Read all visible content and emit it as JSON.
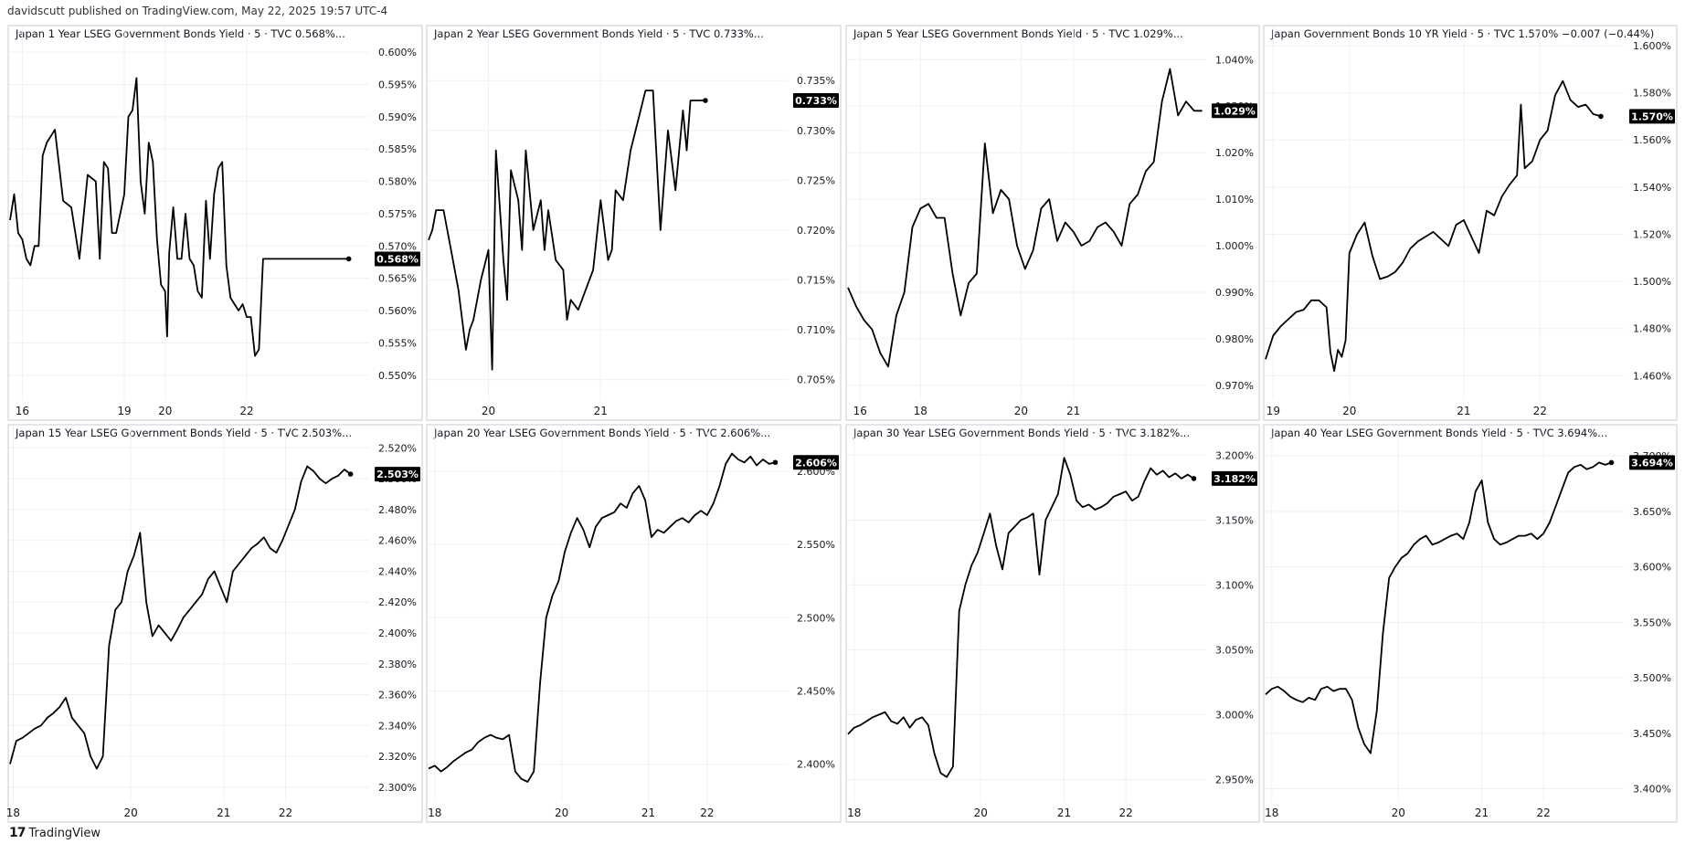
{
  "header": {
    "published": "davidscutt published on TradingView.com, May 22, 2025 19:57 UTC-4"
  },
  "footer": {
    "brand": "TradingView",
    "logo_glyph": "17"
  },
  "colors": {
    "line": "#000000",
    "grid": "#eef0f3",
    "border": "#c7cbd3",
    "text": "#131722",
    "badge_bg": "#000000",
    "badge_text": "#ffffff"
  },
  "chart_data": [
    {
      "type": "line",
      "title": "Japan 1 Year LSEG Government Bonds Yield · 5 · TVC  0.568%...",
      "ylim": [
        0.547,
        0.601
      ],
      "ticks": [
        "0.550%",
        "0.555%",
        "0.560%",
        "0.565%",
        "0.570%",
        "0.575%",
        "0.580%",
        "0.585%",
        "0.590%",
        "0.595%",
        "0.600%"
      ],
      "tick_values": [
        0.55,
        0.555,
        0.56,
        0.565,
        0.57,
        0.575,
        0.58,
        0.585,
        0.59,
        0.595,
        0.6
      ],
      "xlim": [
        15.7,
        24.5
      ],
      "xticks": [
        "16",
        "19",
        "20",
        "22"
      ],
      "xtick_values": [
        16,
        18.5,
        19.5,
        21.5
      ],
      "last_label": "0.568%",
      "last_value": 0.568,
      "end_dot": true,
      "x": [
        15.7,
        15.8,
        15.9,
        16.0,
        16.1,
        16.2,
        16.3,
        16.4,
        16.5,
        16.6,
        16.7,
        16.8,
        17.0,
        17.2,
        17.4,
        17.6,
        17.8,
        17.9,
        18.0,
        18.1,
        18.2,
        18.3,
        18.4,
        18.5,
        18.6,
        18.7,
        18.8,
        18.9,
        19.0,
        19.1,
        19.2,
        19.3,
        19.4,
        19.5,
        19.55,
        19.6,
        19.7,
        19.8,
        19.9,
        20.0,
        20.1,
        20.2,
        20.3,
        20.4,
        20.5,
        20.6,
        20.7,
        20.8,
        20.9,
        21.0,
        21.1,
        21.2,
        21.3,
        21.4,
        21.5,
        21.6,
        21.7,
        21.8,
        21.9,
        22.0,
        22.1,
        22.2,
        22.3,
        22.4,
        22.5,
        22.6,
        22.7,
        22.8,
        22.9,
        23.0,
        23.1,
        23.2,
        23.3,
        23.4,
        23.5,
        23.6,
        23.7,
        23.8,
        23.9,
        24.0
      ],
      "values": [
        0.574,
        0.578,
        0.572,
        0.571,
        0.568,
        0.567,
        0.57,
        0.57,
        0.584,
        0.586,
        0.587,
        0.588,
        0.577,
        0.576,
        0.568,
        0.581,
        0.58,
        0.568,
        0.583,
        0.582,
        0.572,
        0.572,
        0.575,
        0.578,
        0.59,
        0.591,
        0.596,
        0.58,
        0.575,
        0.586,
        0.583,
        0.571,
        0.564,
        0.563,
        0.556,
        0.569,
        0.576,
        0.568,
        0.568,
        0.575,
        0.568,
        0.567,
        0.563,
        0.562,
        0.577,
        0.568,
        0.578,
        0.582,
        0.583,
        0.567,
        0.562,
        0.561,
        0.56,
        0.561,
        0.559,
        0.559,
        0.553,
        0.554,
        0.568,
        0.568,
        0.568,
        0.568,
        0.568,
        0.568,
        0.568,
        0.568,
        0.568,
        0.568,
        0.568,
        0.568,
        0.568,
        0.568,
        0.568,
        0.568,
        0.568,
        0.568,
        0.568,
        0.568,
        0.568,
        0.568
      ]
    },
    {
      "type": "line",
      "title": "Japan 2 Year LSEG Government Bonds Yield · 5 · TVC  0.733%...",
      "ylim": [
        0.7035,
        0.7385
      ],
      "ticks": [
        "0.705%",
        "0.710%",
        "0.715%",
        "0.720%",
        "0.725%",
        "0.730%",
        "0.735%"
      ],
      "tick_values": [
        0.705,
        0.71,
        0.715,
        0.72,
        0.725,
        0.73,
        0.735
      ],
      "xlim": [
        19.0,
        23.8
      ],
      "xticks": [
        "20",
        "21"
      ],
      "xtick_values": [
        19.8,
        21.3
      ],
      "last_label": "0.733%",
      "last_value": 0.733,
      "end_dot": true,
      "x": [
        19.0,
        19.05,
        19.1,
        19.2,
        19.3,
        19.4,
        19.5,
        19.55,
        19.6,
        19.7,
        19.8,
        19.85,
        19.9,
        20.0,
        20.05,
        20.1,
        20.2,
        20.25,
        20.3,
        20.4,
        20.5,
        20.55,
        20.6,
        20.7,
        20.8,
        20.85,
        20.9,
        21.0,
        21.1,
        21.2,
        21.3,
        21.4,
        21.45,
        21.5,
        21.6,
        21.7,
        21.8,
        21.9,
        22.0,
        22.1,
        22.2,
        22.25,
        22.3,
        22.4,
        22.45,
        22.5,
        22.6,
        22.65,
        22.7
      ],
      "values": [
        0.719,
        0.72,
        0.722,
        0.722,
        0.718,
        0.714,
        0.708,
        0.71,
        0.711,
        0.715,
        0.718,
        0.706,
        0.728,
        0.717,
        0.713,
        0.726,
        0.723,
        0.718,
        0.728,
        0.72,
        0.723,
        0.718,
        0.722,
        0.717,
        0.716,
        0.711,
        0.713,
        0.712,
        0.714,
        0.716,
        0.723,
        0.717,
        0.718,
        0.724,
        0.723,
        0.728,
        0.731,
        0.734,
        0.734,
        0.72,
        0.73,
        0.727,
        0.724,
        0.732,
        0.728,
        0.733,
        0.733,
        0.733,
        0.733
      ]
    },
    {
      "type": "line",
      "title": "Japan 5 Year LSEG Government Bonds Yield · 5 · TVC  1.029%...",
      "ylim": [
        0.968,
        1.043
      ],
      "ticks": [
        "0.970%",
        "0.980%",
        "0.990%",
        "1.000%",
        "1.010%",
        "1.020%",
        "1.030%",
        "1.040%"
      ],
      "tick_values": [
        0.97,
        0.98,
        0.99,
        1.0,
        1.01,
        1.02,
        1.03,
        1.04
      ],
      "xlim": [
        15.7,
        24.6
      ],
      "xticks": [
        "16",
        "18",
        "20",
        "21"
      ],
      "xtick_values": [
        16,
        17.5,
        20,
        21.3
      ],
      "last_label": "1.029%",
      "last_value": 1.029,
      "end_dot": false,
      "x": [
        15.7,
        15.9,
        16.1,
        16.3,
        16.5,
        16.7,
        16.9,
        17.1,
        17.3,
        17.5,
        17.7,
        17.9,
        18.1,
        18.3,
        18.5,
        18.7,
        18.9,
        19.1,
        19.3,
        19.5,
        19.7,
        19.9,
        20.1,
        20.3,
        20.5,
        20.7,
        20.9,
        21.1,
        21.3,
        21.5,
        21.7,
        21.9,
        22.1,
        22.3,
        22.5,
        22.7,
        22.9,
        23.1,
        23.3,
        23.5,
        23.7,
        23.9,
        24.1,
        24.3,
        24.5
      ],
      "values": [
        0.991,
        0.987,
        0.984,
        0.982,
        0.977,
        0.974,
        0.985,
        0.99,
        1.004,
        1.008,
        1.009,
        1.006,
        1.006,
        0.994,
        0.985,
        0.992,
        0.994,
        1.022,
        1.007,
        1.012,
        1.01,
        1.0,
        0.995,
        0.999,
        1.008,
        1.01,
        1.001,
        1.005,
        1.003,
        1.0,
        1.001,
        1.004,
        1.005,
        1.003,
        1.0,
        1.009,
        1.011,
        1.016,
        1.018,
        1.031,
        1.038,
        1.028,
        1.031,
        1.029,
        1.029
      ]
    },
    {
      "type": "line",
      "title": "Japan Government Bonds 10 YR Yield · 5 · TVC  1.570%  −0.007 (−0.44%)",
      "ylim": [
        1.452,
        1.6
      ],
      "ticks": [
        "1.460%",
        "1.480%",
        "1.500%",
        "1.520%",
        "1.540%",
        "1.560%",
        "1.580%",
        "1.600%"
      ],
      "tick_values": [
        1.46,
        1.48,
        1.5,
        1.52,
        1.54,
        1.56,
        1.58,
        1.6
      ],
      "xlim": [
        18.7,
        23.4
      ],
      "xticks": [
        "19",
        "20",
        "21",
        "22"
      ],
      "xtick_values": [
        18.8,
        19.8,
        21.3,
        22.3
      ],
      "last_label": "1.570%",
      "last_value": 1.57,
      "end_dot": true,
      "x": [
        18.7,
        18.8,
        18.9,
        19.0,
        19.1,
        19.2,
        19.3,
        19.4,
        19.5,
        19.55,
        19.6,
        19.65,
        19.7,
        19.75,
        19.8,
        19.9,
        20.0,
        20.1,
        20.2,
        20.3,
        20.4,
        20.5,
        20.6,
        20.7,
        20.8,
        20.9,
        21.0,
        21.1,
        21.2,
        21.3,
        21.4,
        21.5,
        21.6,
        21.7,
        21.8,
        21.9,
        22.0,
        22.05,
        22.1,
        22.2,
        22.3,
        22.4,
        22.5,
        22.6,
        22.7,
        22.8,
        22.9,
        23.0,
        23.1
      ],
      "values": [
        1.467,
        1.477,
        1.481,
        1.484,
        1.487,
        1.488,
        1.492,
        1.492,
        1.489,
        1.47,
        1.462,
        1.471,
        1.468,
        1.475,
        1.512,
        1.52,
        1.525,
        1.511,
        1.501,
        1.502,
        1.504,
        1.508,
        1.514,
        1.517,
        1.519,
        1.521,
        1.518,
        1.515,
        1.524,
        1.526,
        1.519,
        1.512,
        1.53,
        1.528,
        1.536,
        1.541,
        1.545,
        1.575,
        1.548,
        1.551,
        1.56,
        1.564,
        1.579,
        1.585,
        1.577,
        1.574,
        1.575,
        1.571,
        1.57
      ]
    },
    {
      "type": "line",
      "title": "Japan 15 Year LSEG Government Bonds Yield · 5 · TVC  2.503%...",
      "ylim": [
        2.294,
        2.522
      ],
      "ticks": [
        "2.300%",
        "2.320%",
        "2.340%",
        "2.360%",
        "2.380%",
        "2.400%",
        "2.420%",
        "2.440%",
        "2.460%",
        "2.480%",
        "2.500%",
        "2.520%"
      ],
      "tick_values": [
        2.3,
        2.32,
        2.34,
        2.36,
        2.38,
        2.4,
        2.42,
        2.44,
        2.46,
        2.48,
        2.5,
        2.52
      ],
      "xlim": [
        18.0,
        23.8
      ],
      "xticks": [
        "18",
        "20",
        "21",
        "22"
      ],
      "xtick_values": [
        18.05,
        19.95,
        21.45,
        22.45
      ],
      "last_label": "2.503%",
      "last_value": 2.503,
      "end_dot": true,
      "x": [
        18.0,
        18.1,
        18.2,
        18.3,
        18.4,
        18.5,
        18.6,
        18.7,
        18.8,
        18.9,
        19.0,
        19.1,
        19.2,
        19.3,
        19.4,
        19.5,
        19.6,
        19.7,
        19.8,
        19.9,
        20.0,
        20.1,
        20.2,
        20.3,
        20.4,
        20.5,
        20.6,
        20.7,
        20.8,
        20.9,
        21.0,
        21.1,
        21.2,
        21.3,
        21.4,
        21.5,
        21.6,
        21.7,
        21.8,
        21.9,
        22.0,
        22.1,
        22.2,
        22.3,
        22.4,
        22.5,
        22.6,
        22.7,
        22.8,
        22.9,
        23.0,
        23.1,
        23.2,
        23.3,
        23.4,
        23.5
      ],
      "values": [
        2.315,
        2.33,
        2.332,
        2.335,
        2.338,
        2.34,
        2.345,
        2.348,
        2.352,
        2.358,
        2.345,
        2.34,
        2.335,
        2.32,
        2.312,
        2.32,
        2.392,
        2.415,
        2.42,
        2.44,
        2.45,
        2.465,
        2.42,
        2.398,
        2.405,
        2.4,
        2.395,
        2.402,
        2.41,
        2.415,
        2.42,
        2.425,
        2.435,
        2.44,
        2.43,
        2.42,
        2.44,
        2.445,
        2.45,
        2.455,
        2.458,
        2.462,
        2.455,
        2.452,
        2.46,
        2.47,
        2.48,
        2.498,
        2.508,
        2.505,
        2.5,
        2.497,
        2.5,
        2.502,
        2.506,
        2.503
      ]
    },
    {
      "type": "line",
      "title": "Japan 20 Year LSEG Government Bonds Yield · 5 · TVC  2.606%...",
      "ylim": [
        2.378,
        2.618
      ],
      "ticks": [
        "2.400%",
        "2.450%",
        "2.500%",
        "2.550%",
        "2.600%"
      ],
      "tick_values": [
        2.4,
        2.45,
        2.5,
        2.55,
        2.6
      ],
      "xlim": [
        17.8,
        23.6
      ],
      "xticks": [
        "18",
        "20",
        "21",
        "22"
      ],
      "xtick_values": [
        17.9,
        19.95,
        21.35,
        22.3
      ],
      "last_label": "2.606%",
      "last_value": 2.606,
      "end_dot": true,
      "x": [
        17.8,
        17.9,
        18.0,
        18.1,
        18.2,
        18.3,
        18.4,
        18.5,
        18.6,
        18.7,
        18.8,
        18.9,
        19.0,
        19.1,
        19.2,
        19.3,
        19.4,
        19.5,
        19.6,
        19.7,
        19.8,
        19.9,
        20.0,
        20.1,
        20.2,
        20.3,
        20.4,
        20.5,
        20.6,
        20.7,
        20.8,
        20.9,
        21.0,
        21.1,
        21.2,
        21.3,
        21.4,
        21.5,
        21.6,
        21.7,
        21.8,
        21.9,
        22.0,
        22.1,
        22.2,
        22.3,
        22.4,
        22.5,
        22.6,
        22.7,
        22.8,
        22.9,
        23.0,
        23.1,
        23.2,
        23.3,
        23.4
      ],
      "values": [
        2.397,
        2.399,
        2.395,
        2.398,
        2.402,
        2.405,
        2.408,
        2.41,
        2.415,
        2.418,
        2.42,
        2.418,
        2.417,
        2.42,
        2.395,
        2.39,
        2.388,
        2.395,
        2.455,
        2.5,
        2.515,
        2.525,
        2.545,
        2.558,
        2.568,
        2.56,
        2.548,
        2.562,
        2.568,
        2.57,
        2.572,
        2.578,
        2.575,
        2.585,
        2.59,
        2.58,
        2.555,
        2.56,
        2.558,
        2.562,
        2.566,
        2.568,
        2.565,
        2.57,
        2.573,
        2.57,
        2.578,
        2.59,
        2.605,
        2.612,
        2.608,
        2.606,
        2.61,
        2.604,
        2.608,
        2.605,
        2.606
      ]
    },
    {
      "type": "line",
      "title": "Japan 30 Year LSEG Government Bonds Yield · 5 · TVC  3.182%...",
      "ylim": [
        2.937,
        3.208
      ],
      "ticks": [
        "2.950%",
        "3.000%",
        "3.050%",
        "3.100%",
        "3.150%",
        "3.200%"
      ],
      "tick_values": [
        2.95,
        3.0,
        3.05,
        3.1,
        3.15,
        3.2
      ],
      "xlim": [
        17.8,
        23.6
      ],
      "xticks": [
        "18",
        "20",
        "21",
        "22"
      ],
      "xtick_values": [
        17.9,
        19.95,
        21.3,
        22.3
      ],
      "last_label": "3.182%",
      "last_value": 3.182,
      "end_dot": true,
      "x": [
        17.8,
        17.9,
        18.0,
        18.1,
        18.2,
        18.3,
        18.4,
        18.5,
        18.6,
        18.7,
        18.8,
        18.9,
        19.0,
        19.1,
        19.2,
        19.3,
        19.4,
        19.5,
        19.6,
        19.7,
        19.8,
        19.9,
        20.0,
        20.1,
        20.2,
        20.3,
        20.4,
        20.5,
        20.6,
        20.7,
        20.8,
        20.9,
        21.0,
        21.1,
        21.2,
        21.3,
        21.4,
        21.5,
        21.6,
        21.7,
        21.8,
        21.9,
        22.0,
        22.1,
        22.2,
        22.3,
        22.4,
        22.5,
        22.6,
        22.7,
        22.8,
        22.9,
        23.0,
        23.1,
        23.2,
        23.3,
        23.4
      ],
      "values": [
        2.985,
        2.99,
        2.992,
        2.995,
        2.998,
        3.0,
        3.002,
        2.995,
        2.993,
        2.998,
        2.99,
        2.996,
        2.998,
        2.992,
        2.97,
        2.955,
        2.952,
        2.96,
        3.08,
        3.1,
        3.115,
        3.125,
        3.14,
        3.155,
        3.13,
        3.112,
        3.14,
        3.145,
        3.15,
        3.152,
        3.155,
        3.108,
        3.15,
        3.16,
        3.17,
        3.198,
        3.185,
        3.165,
        3.16,
        3.162,
        3.158,
        3.16,
        3.163,
        3.168,
        3.17,
        3.172,
        3.165,
        3.168,
        3.18,
        3.19,
        3.185,
        3.188,
        3.183,
        3.186,
        3.182,
        3.185,
        3.182
      ]
    },
    {
      "type": "line",
      "title": "Japan 40 Year LSEG Government Bonds Yield · 5 · TVC  3.694%...",
      "ylim": [
        3.393,
        3.71
      ],
      "ticks": [
        "3.400%",
        "3.450%",
        "3.500%",
        "3.550%",
        "3.600%",
        "3.650%",
        "3.700%"
      ],
      "tick_values": [
        3.4,
        3.45,
        3.5,
        3.55,
        3.6,
        3.65,
        3.7
      ],
      "xlim": [
        17.8,
        23.6
      ],
      "xticks": [
        "18",
        "20",
        "21",
        "22"
      ],
      "xtick_values": [
        17.9,
        19.95,
        21.3,
        22.3
      ],
      "last_label": "3.694%",
      "last_value": 3.694,
      "end_dot": true,
      "x": [
        17.8,
        17.9,
        18.0,
        18.1,
        18.2,
        18.3,
        18.4,
        18.5,
        18.6,
        18.7,
        18.8,
        18.9,
        19.0,
        19.1,
        19.2,
        19.3,
        19.4,
        19.5,
        19.6,
        19.7,
        19.8,
        19.9,
        20.0,
        20.1,
        20.2,
        20.3,
        20.4,
        20.5,
        20.6,
        20.7,
        20.8,
        20.9,
        21.0,
        21.1,
        21.2,
        21.3,
        21.4,
        21.5,
        21.6,
        21.7,
        21.8,
        21.9,
        22.0,
        22.1,
        22.2,
        22.3,
        22.4,
        22.5,
        22.6,
        22.7,
        22.8,
        22.9,
        23.0,
        23.1,
        23.2,
        23.3,
        23.4
      ],
      "values": [
        3.485,
        3.49,
        3.492,
        3.488,
        3.483,
        3.48,
        3.478,
        3.482,
        3.48,
        3.49,
        3.492,
        3.488,
        3.49,
        3.49,
        3.48,
        3.455,
        3.44,
        3.432,
        3.47,
        3.54,
        3.59,
        3.6,
        3.608,
        3.612,
        3.62,
        3.625,
        3.628,
        3.62,
        3.622,
        3.625,
        3.628,
        3.63,
        3.625,
        3.64,
        3.668,
        3.678,
        3.64,
        3.625,
        3.62,
        3.622,
        3.625,
        3.628,
        3.628,
        3.63,
        3.625,
        3.63,
        3.64,
        3.655,
        3.67,
        3.685,
        3.69,
        3.692,
        3.688,
        3.69,
        3.694,
        3.692,
        3.694
      ]
    }
  ]
}
